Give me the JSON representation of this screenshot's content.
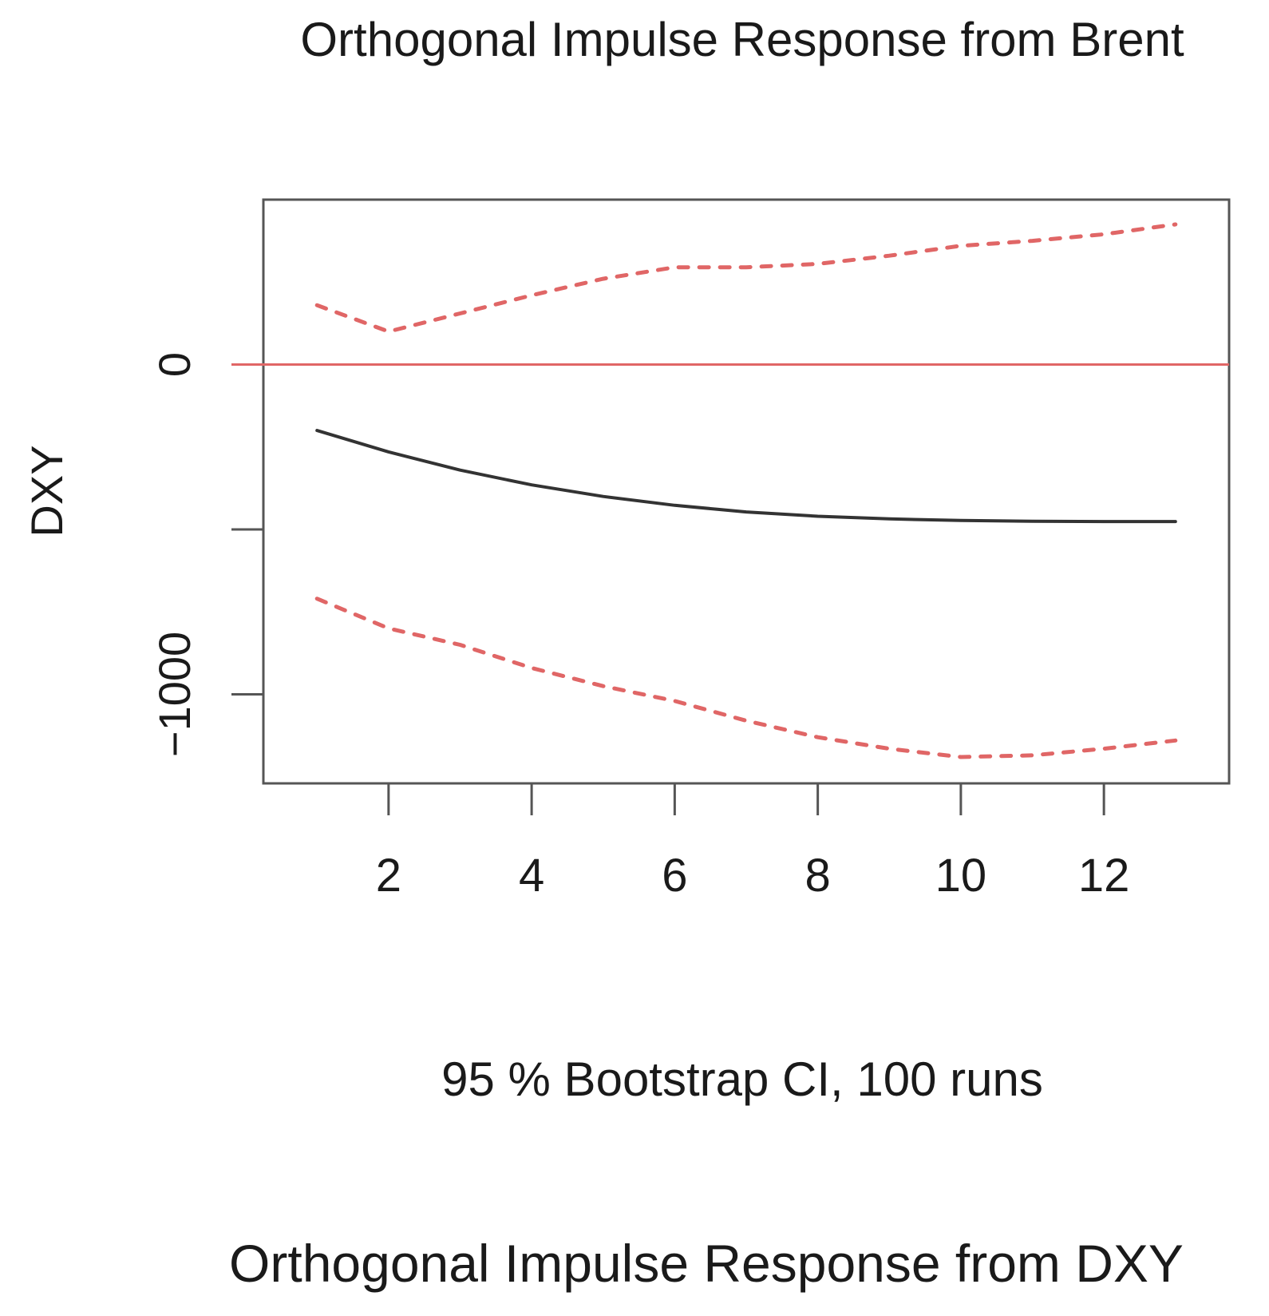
{
  "chart_data": {
    "type": "line",
    "title": "Orthogonal Impulse Response from Brent",
    "xlabel": "95 % Bootstrap CI,  100 runs",
    "ylabel": "DXY",
    "footer_title": "Orthogonal Impulse Response from DXY",
    "x": [
      1,
      2,
      3,
      4,
      5,
      6,
      7,
      8,
      9,
      10,
      11,
      12,
      13
    ],
    "xlim": [
      0.25,
      13.75
    ],
    "ylim": [
      -1270,
      500
    ],
    "x_ticks": [
      2,
      4,
      6,
      8,
      10,
      12
    ],
    "y_ticks": [
      0,
      -500,
      -1000
    ],
    "y_tick_labels": [
      "0",
      "",
      "−1000"
    ],
    "reference_line": {
      "y": 0,
      "color": "#e06666"
    },
    "series": [
      {
        "values": [
          -200,
          -265,
          -320,
          -365,
          -400,
          -427,
          -447,
          -460,
          -468,
          -473,
          -475,
          -476,
          -476
        ],
        "color": "#333333",
        "style": "solid"
      },
      {
        "values": [
          180,
          100,
          155,
          210,
          260,
          295,
          295,
          305,
          330,
          360,
          375,
          395,
          425
        ],
        "color": "#e06666",
        "style": "dashed"
      },
      {
        "values": [
          -710,
          -800,
          -850,
          -920,
          -975,
          -1020,
          -1080,
          -1130,
          -1165,
          -1190,
          -1185,
          -1165,
          -1140
        ],
        "color": "#e06666",
        "style": "dashed"
      }
    ],
    "grid": false,
    "legend": "none"
  }
}
